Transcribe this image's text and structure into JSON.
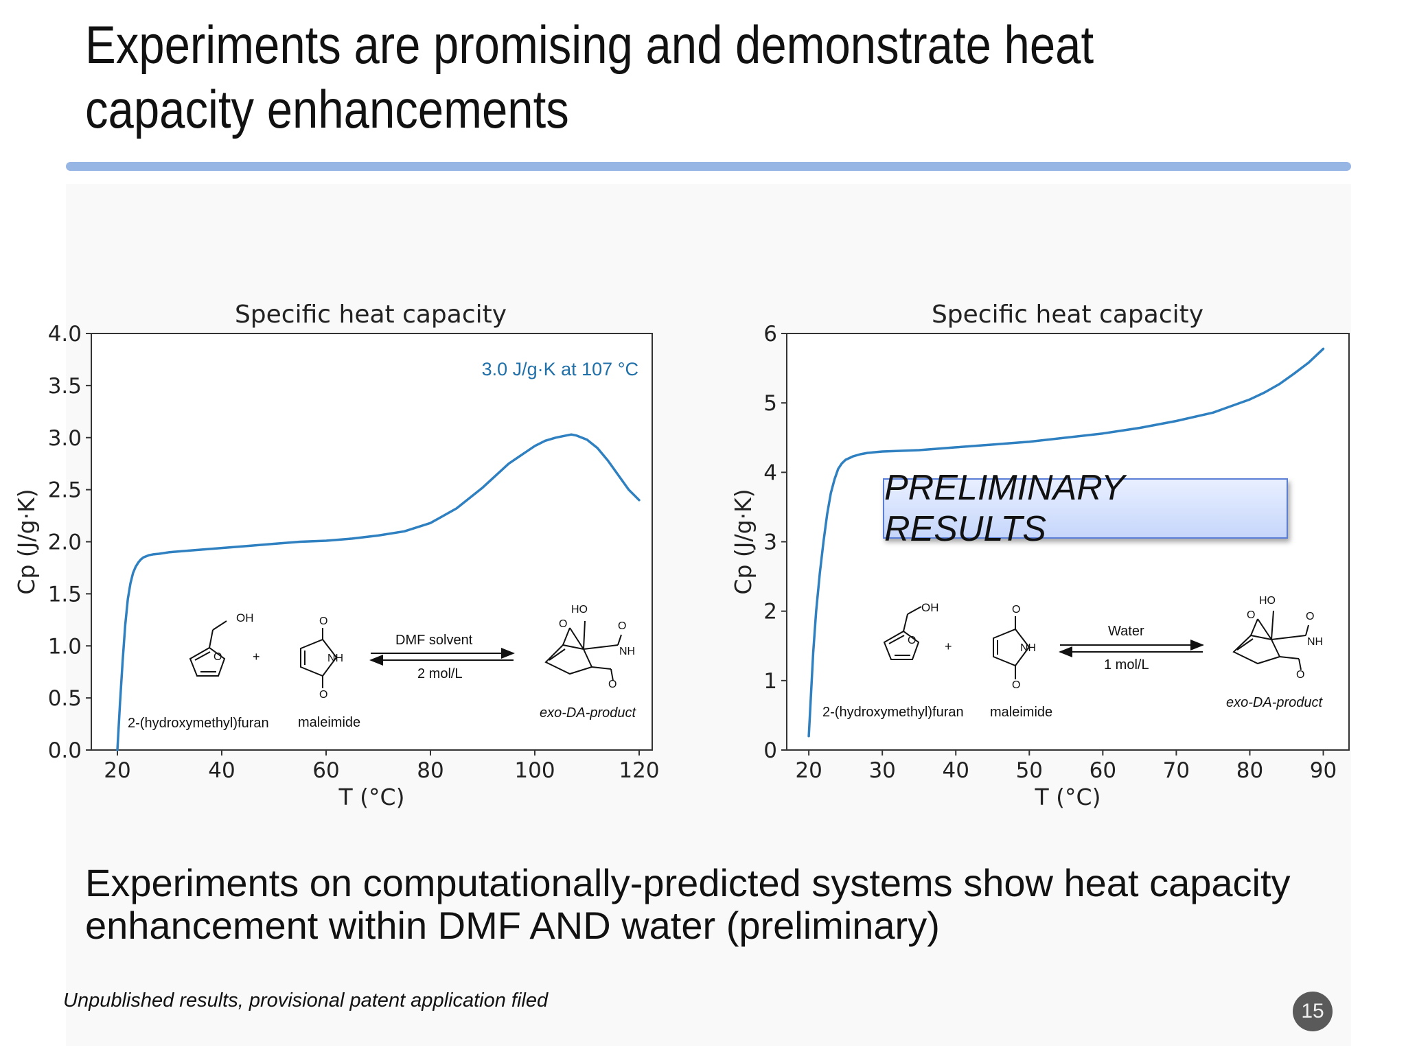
{
  "slide": {
    "title": "Experiments are promising and demonstrate heat capacity enhancements",
    "summary": "Experiments on computationally-predicted systems show heat capacity enhancement within DMF AND water (preliminary)",
    "footnote": "Unpublished results, provisional patent application filed",
    "page_number": "15",
    "preliminary_label": "PRELIMINARY RESULTS"
  },
  "colors": {
    "line": "#2f80c0",
    "title_rule": "#97b6e3",
    "annotation": "#1f6fa8"
  },
  "chart_data": [
    {
      "type": "line",
      "title": "Specific heat capacity",
      "xlabel": "T (°C)",
      "ylabel": "Cp (J/g·K)",
      "xlim": [
        15,
        122.5
      ],
      "ylim": [
        0,
        4.0
      ],
      "xticks": [
        20,
        40,
        60,
        80,
        100,
        120
      ],
      "yticks": [
        0.0,
        0.5,
        1.0,
        1.5,
        2.0,
        2.5,
        3.0,
        3.5,
        4.0
      ],
      "ytick_labels": [
        "0.0",
        "0.5",
        "1.0",
        "1.5",
        "2.0",
        "2.5",
        "3.0",
        "3.5",
        "4.0"
      ],
      "grid": false,
      "annotation": "3.0 J/g·K at 107 °C",
      "series": [
        {
          "x": [
            20,
            20.5,
            21,
            21.5,
            22,
            22.5,
            23,
            23.5,
            24,
            24.5,
            25,
            26,
            27,
            28,
            30,
            35,
            40,
            45,
            50,
            55,
            60,
            65,
            70,
            75,
            80,
            85,
            90,
            95,
            100,
            102,
            104,
            106,
            107,
            108,
            110,
            112,
            114,
            116,
            118,
            120
          ],
          "y": [
            0.0,
            0.45,
            0.85,
            1.2,
            1.45,
            1.6,
            1.7,
            1.76,
            1.8,
            1.83,
            1.85,
            1.87,
            1.88,
            1.885,
            1.9,
            1.92,
            1.94,
            1.96,
            1.98,
            2.0,
            2.01,
            2.03,
            2.06,
            2.1,
            2.18,
            2.32,
            2.52,
            2.75,
            2.92,
            2.97,
            3.0,
            3.02,
            3.03,
            3.02,
            2.98,
            2.9,
            2.78,
            2.64,
            2.5,
            2.4
          ]
        }
      ],
      "scheme": {
        "reactant1": "2-(hydroxymethyl)furan",
        "reactant2": "maleimide",
        "product": "exo-DA-product",
        "conditions_top": "DMF solvent",
        "conditions_bottom": "2 mol/L"
      }
    },
    {
      "type": "line",
      "title": "Specific heat capacity",
      "xlabel": "T (°C)",
      "ylabel": "Cp (J/g·K)",
      "xlim": [
        17,
        93.5
      ],
      "ylim": [
        0,
        6
      ],
      "xticks": [
        20,
        30,
        40,
        50,
        60,
        70,
        80,
        90
      ],
      "yticks": [
        0,
        1,
        2,
        3,
        4,
        5,
        6
      ],
      "ytick_labels": [
        "0",
        "1",
        "2",
        "3",
        "4",
        "5",
        "6"
      ],
      "grid": false,
      "series": [
        {
          "x": [
            20,
            20.3,
            20.6,
            21,
            21.5,
            22,
            22.5,
            23,
            23.5,
            24,
            24.5,
            25,
            26,
            27,
            28,
            30,
            35,
            40,
            45,
            50,
            55,
            60,
            65,
            70,
            75,
            80,
            82,
            84,
            86,
            88,
            90
          ],
          "y": [
            0.2,
            0.8,
            1.4,
            2.0,
            2.55,
            3.0,
            3.4,
            3.7,
            3.9,
            4.05,
            4.13,
            4.18,
            4.23,
            4.26,
            4.28,
            4.3,
            4.32,
            4.36,
            4.4,
            4.44,
            4.5,
            4.56,
            4.64,
            4.74,
            4.86,
            5.05,
            5.15,
            5.27,
            5.42,
            5.58,
            5.78
          ]
        }
      ],
      "scheme": {
        "reactant1": "2-(hydroxymethyl)furan",
        "reactant2": "maleimide",
        "product": "exo-DA-product",
        "conditions_top": "Water",
        "conditions_bottom": "1 mol/L"
      }
    }
  ]
}
